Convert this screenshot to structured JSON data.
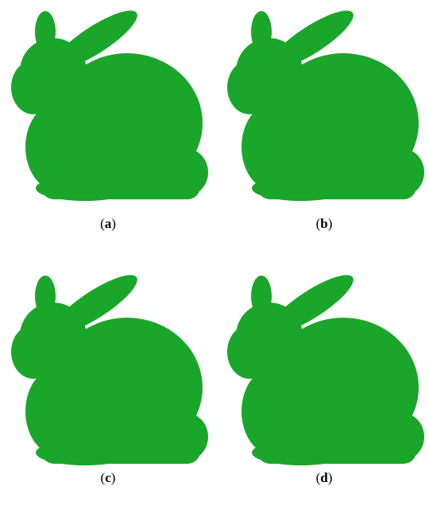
{
  "panels": [
    {
      "label": [
        "(",
        "a",
        ")"
      ]
    },
    {
      "label": [
        "(",
        "b",
        ")"
      ]
    },
    {
      "label": [
        "(",
        "c",
        ")"
      ]
    },
    {
      "label": [
        "(",
        "d",
        ")"
      ]
    }
  ]
}
